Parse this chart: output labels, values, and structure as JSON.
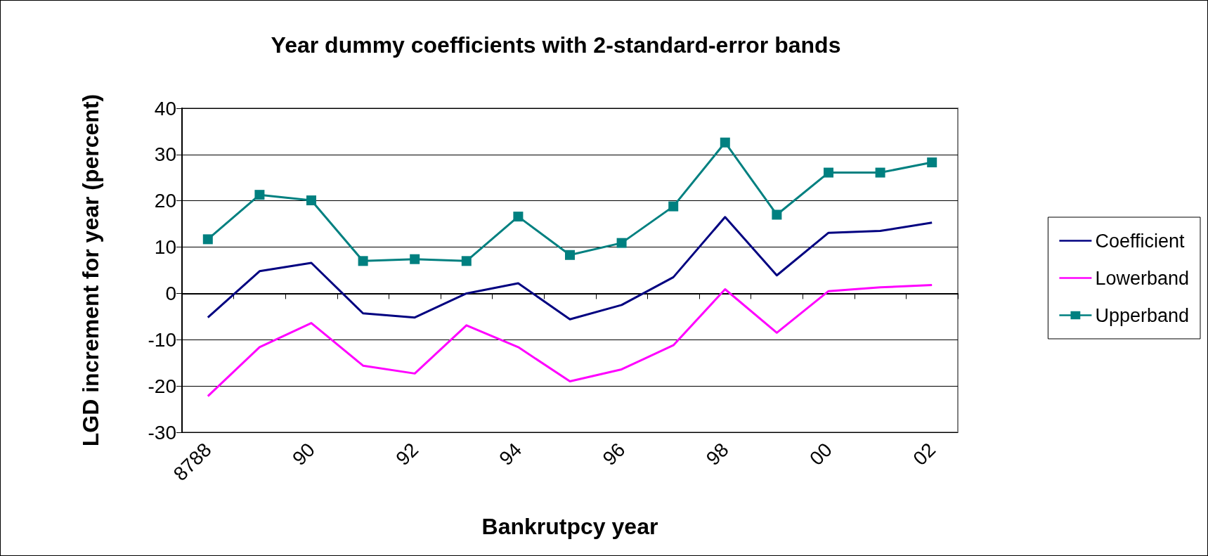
{
  "chart_data": {
    "type": "line",
    "title": "Year dummy coefficients with 2-standard-error bands",
    "xlabel": "Bankrutpcy year",
    "ylabel": "LGD increment for year (percent)",
    "categories": [
      "8788",
      null,
      "90",
      null,
      "92",
      null,
      "94",
      null,
      "96",
      null,
      "98",
      null,
      "00",
      null,
      "02"
    ],
    "series": [
      {
        "name": "Coefficient",
        "color": "#000080",
        "marker": "none",
        "values": [
          -5.2,
          4.8,
          6.6,
          -4.3,
          -5.2,
          0.0,
          2.2,
          -5.6,
          -2.5,
          3.5,
          16.5,
          3.9,
          13.1,
          13.5,
          15.3
        ]
      },
      {
        "name": "Lowerband",
        "color": "#ff00ff",
        "marker": "none",
        "values": [
          -22.2,
          -11.6,
          -6.4,
          -15.6,
          -17.3,
          -6.9,
          -11.6,
          -19.0,
          -16.4,
          -11.2,
          0.9,
          -8.5,
          0.5,
          1.3,
          1.8
        ]
      },
      {
        "name": "Upperband",
        "color": "#008080",
        "marker": "square",
        "values": [
          11.7,
          21.3,
          20.1,
          7.0,
          7.4,
          7.0,
          16.6,
          8.3,
          10.9,
          18.8,
          32.6,
          17.0,
          26.1,
          26.1,
          28.3
        ]
      }
    ],
    "ylim": [
      -30,
      40
    ],
    "yticks": [
      -30,
      -20,
      -10,
      0,
      10,
      20,
      30,
      40
    ],
    "grid": "y",
    "legend": "right"
  }
}
